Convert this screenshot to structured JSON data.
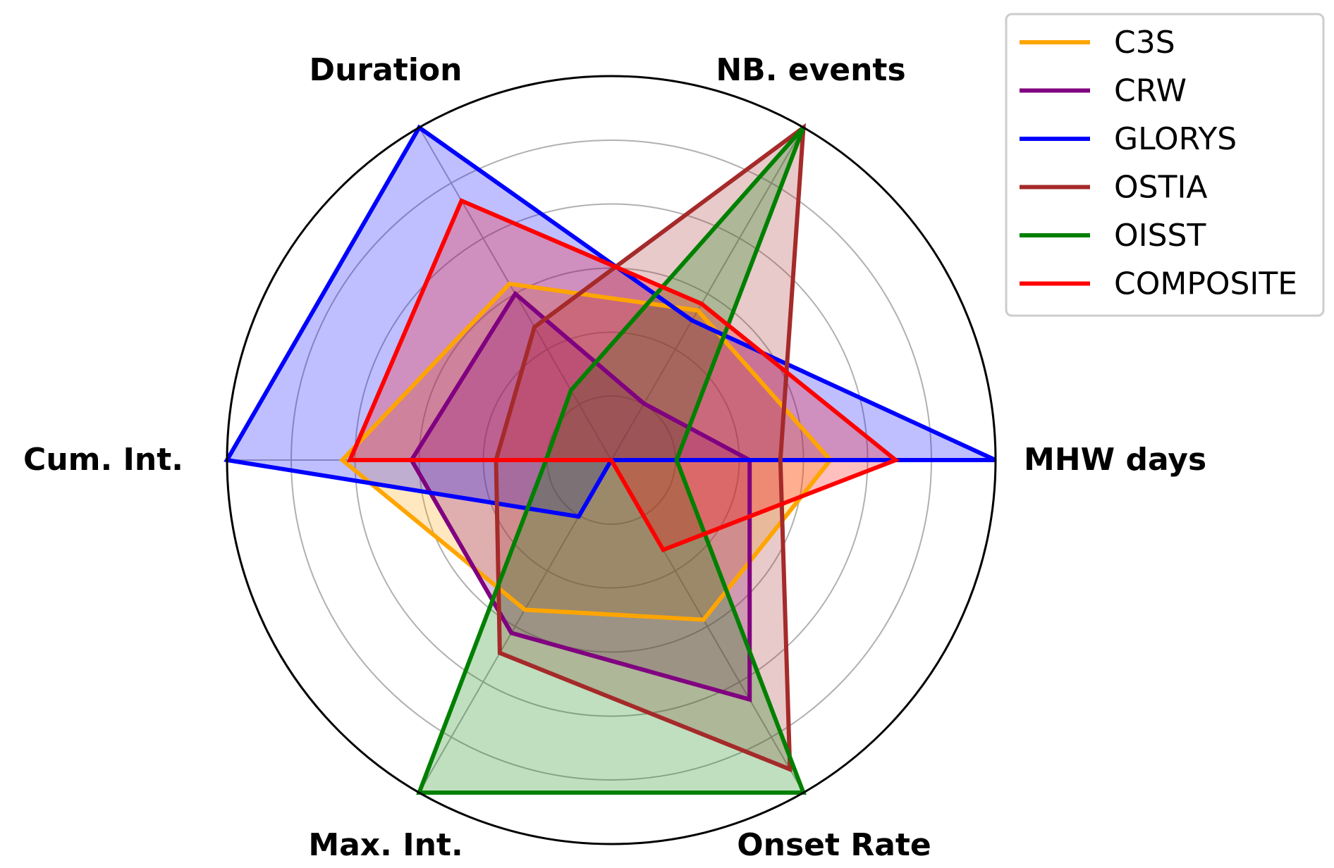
{
  "chart_data": {
    "type": "radar",
    "axes": [
      "MHW days",
      "NB. events",
      "Duration",
      "Cum. Int.",
      "Max. Int.",
      "Onset Rate"
    ],
    "rlim": [
      0,
      1
    ],
    "grid": true,
    "grid_levels": [
      0.167,
      0.333,
      0.5,
      0.667,
      0.833
    ],
    "legend_position": "top-right",
    "series": [
      {
        "name": "C3S",
        "color": "#FFA500",
        "values": [
          0.57,
          0.45,
          0.53,
          0.7,
          0.45,
          0.48
        ],
        "fill": true
      },
      {
        "name": "CRW",
        "color": "#800080",
        "values": [
          0.36,
          0.17,
          0.5,
          0.52,
          0.52,
          0.72
        ],
        "fill": true
      },
      {
        "name": "GLORYS",
        "color": "#0000FF",
        "values": [
          1.0,
          0.42,
          1.0,
          1.0,
          0.17,
          0.0
        ],
        "fill": true
      },
      {
        "name": "OSTIA",
        "color": "#A52A2A",
        "values": [
          0.44,
          1.0,
          0.4,
          0.3,
          0.58,
          0.93
        ],
        "fill": true
      },
      {
        "name": "OISST",
        "color": "#008000",
        "values": [
          0.17,
          1.0,
          0.21,
          0.17,
          1.0,
          1.0
        ],
        "fill": true
      },
      {
        "name": "COMPOSITE",
        "color": "#FF0000",
        "values": [
          0.74,
          0.47,
          0.78,
          0.68,
          0.0,
          0.27
        ],
        "fill": true
      }
    ]
  }
}
